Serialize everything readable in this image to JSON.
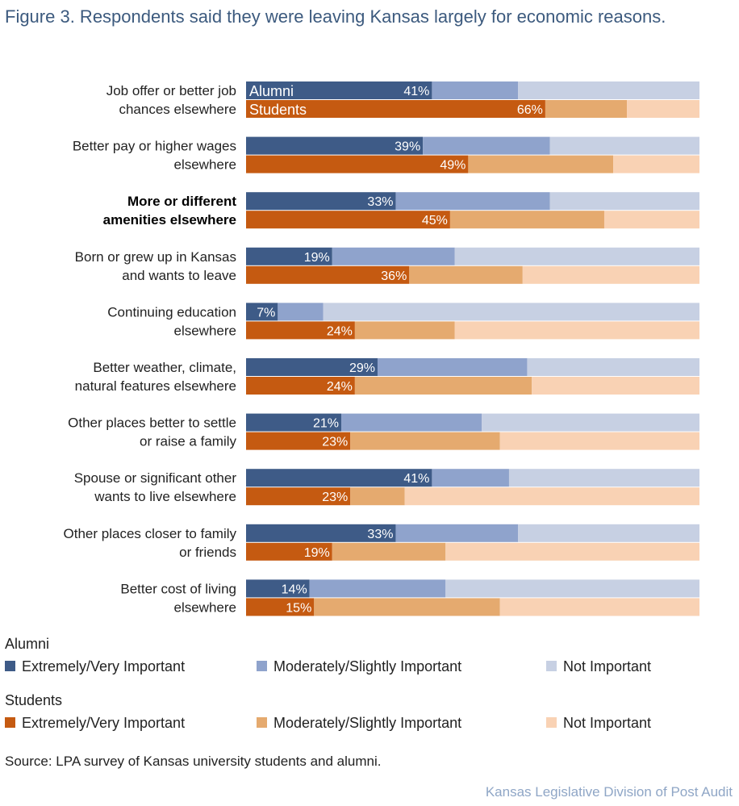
{
  "title": "Figure 3. Respondents said they were leaving Kansas largely for economic reasons.",
  "chart_data": {
    "type": "bar",
    "orientation": "horizontal",
    "stacked": true,
    "normalized_to_100": true,
    "categories": [
      "Job offer or better job chances elsewhere",
      "Better pay or higher wages elsewhere",
      "More or different amenities elsewhere",
      "Born or grew up in Kansas and wants to leave",
      "Continuing education elsewhere",
      "Better weather, climate, natural features elsewhere",
      "Other places better to settle or raise a family",
      "Spouse or significant other wants to live elsewhere",
      "Other places closer to family or friends",
      "Better cost of living elsewhere"
    ],
    "highlighted_category": "More or different amenities elsewhere",
    "groups": [
      {
        "name": "Alumni",
        "segments": [
          {
            "name": "Extremely/Very Important",
            "color": "#3e5b87",
            "values": [
              41,
              39,
              33,
              19,
              7,
              29,
              21,
              41,
              33,
              14
            ]
          },
          {
            "name": "Moderately/Slightly Important",
            "color": "#8fa3cc",
            "values": [
              19,
              28,
              34,
              27,
              10,
              33,
              31,
              17,
              27,
              30
            ]
          },
          {
            "name": "Not Important",
            "color": "#c7d0e3",
            "values": [
              40,
              33,
              33,
              54,
              83,
              38,
              48,
              42,
              40,
              56
            ]
          }
        ]
      },
      {
        "name": "Students",
        "segments": [
          {
            "name": "Extremely/Very Important",
            "color": "#c55a11",
            "values": [
              66,
              49,
              45,
              36,
              24,
              24,
              23,
              23,
              19,
              15
            ]
          },
          {
            "name": "Moderately/Slightly Important",
            "color": "#e5aa6f",
            "values": [
              18,
              32,
              34,
              25,
              22,
              39,
              33,
              12,
              25,
              41
            ]
          },
          {
            "name": "Not Important",
            "color": "#f9d2b4",
            "values": [
              16,
              19,
              21,
              39,
              54,
              37,
              44,
              65,
              56,
              44
            ]
          }
        ]
      }
    ],
    "bar_inline_labels": [
      "Alumni",
      "Students"
    ],
    "data_labels_format": "{v}%",
    "legend": "bottom"
  },
  "legend": {
    "alumni_title": "Alumni",
    "students_title": "Students",
    "items": [
      "Extremely/Very Important",
      "Moderately/Slightly Important",
      "Not Important"
    ]
  },
  "source": "Source: LPA survey of Kansas university students and alumni.",
  "footer": "Kansas Legislative Division of Post Audit"
}
